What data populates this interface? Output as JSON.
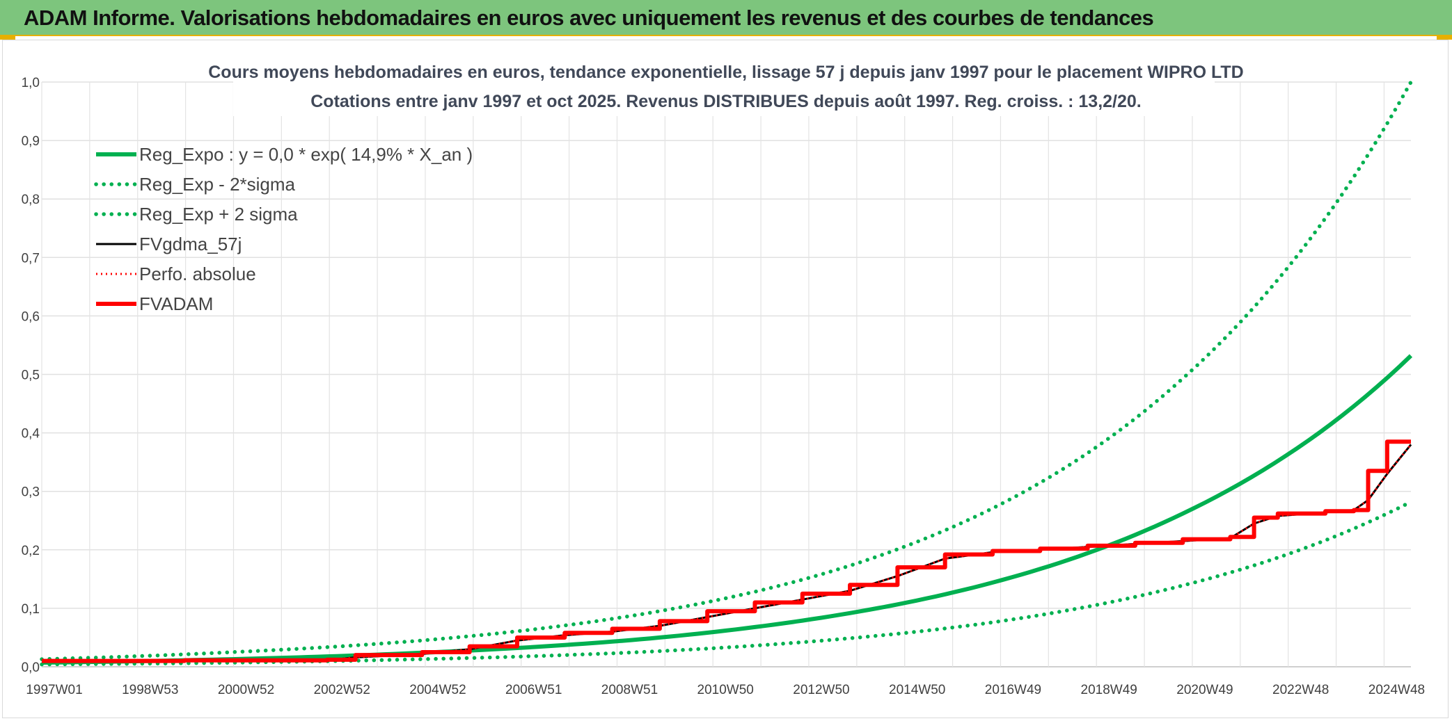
{
  "banner": {
    "title": "ADAM Informe. Valorisations hebdomadaires en euros avec uniquement les revenus et des courbes de tendances"
  },
  "chart_data": {
    "type": "line",
    "title": "Cours moyens hebdomadaires en euros, tendance exponentielle, lissage 57 j depuis janv 1997 pour le placement WIPRO LTD",
    "subtitle": "Cotations entre janv 1997 et oct 2025. Revenus DISTRIBUES depuis août 1997. Reg. croiss. : 13,2/20.",
    "xlabel": "",
    "ylabel": "",
    "x_tick_labels": [
      "1997W01",
      "1998W53",
      "2000W52",
      "2002W52",
      "2004W52",
      "2006W51",
      "2008W51",
      "2010W50",
      "2012W50",
      "2014W50",
      "2016W49",
      "2018W49",
      "2020W49",
      "2022W48",
      "2024W48"
    ],
    "x_range": [
      1997.0,
      2025.8
    ],
    "y_ticks": [
      "0,0",
      "0,1",
      "0,2",
      "0,3",
      "0,4",
      "0,5",
      "0,6",
      "0,7",
      "0,8",
      "0,9",
      "1,0"
    ],
    "ylim": [
      0,
      1.0
    ],
    "grid": true,
    "legend_position": "top-left",
    "series": [
      {
        "name": "Reg_Expo : y = 0,0 * exp( 14,9% *  X_an )",
        "color": "#00b050",
        "style": "solid",
        "x": [
          1997.0,
          2001.0,
          2005.0,
          2009.0,
          2013.0,
          2017.0,
          2021.0,
          2025.8
        ],
        "values": [
          0.007,
          0.013,
          0.024,
          0.043,
          0.079,
          0.144,
          0.262,
          0.532
        ]
      },
      {
        "name": "Reg_Exp - 2*sigma",
        "color": "#00b050",
        "style": "dotted",
        "x": [
          1997.0,
          2001.0,
          2005.0,
          2009.0,
          2013.0,
          2017.0,
          2021.0,
          2025.8
        ],
        "values": [
          0.004,
          0.007,
          0.013,
          0.023,
          0.042,
          0.076,
          0.139,
          0.282
        ]
      },
      {
        "name": "Reg_Exp + 2 sigma",
        "color": "#00b050",
        "style": "dotted",
        "x": [
          1997.0,
          2001.0,
          2005.0,
          2009.0,
          2013.0,
          2017.0,
          2021.0,
          2025.8
        ],
        "values": [
          0.013,
          0.025,
          0.045,
          0.082,
          0.149,
          0.271,
          0.493,
          1.0
        ]
      },
      {
        "name": "FVgdma_57j",
        "color": "#000000",
        "style": "solid",
        "x": [
          1997.0,
          2000.0,
          2003.0,
          2003.6,
          2005.0,
          2006.0,
          2007.0,
          2008.0,
          2009.0,
          2010.0,
          2011.0,
          2012.0,
          2013.0,
          2014.0,
          2015.0,
          2016.0,
          2017.0,
          2018.0,
          2019.0,
          2020.0,
          2021.0,
          2022.0,
          2022.5,
          2023.0,
          2024.0,
          2024.6,
          2024.9,
          2025.3,
          2025.8
        ],
        "values": [
          0.009,
          0.01,
          0.011,
          0.016,
          0.022,
          0.03,
          0.045,
          0.054,
          0.06,
          0.07,
          0.085,
          0.1,
          0.115,
          0.13,
          0.155,
          0.185,
          0.196,
          0.2,
          0.205,
          0.21,
          0.215,
          0.22,
          0.245,
          0.258,
          0.264,
          0.268,
          0.285,
          0.33,
          0.38
        ]
      },
      {
        "name": "Perfo. absolue",
        "color": "#ff0000",
        "style": "dotted",
        "x": [
          1997.0,
          2000.0,
          2003.0,
          2003.6,
          2005.0,
          2006.0,
          2007.0,
          2008.0,
          2009.0,
          2010.0,
          2011.0,
          2012.0,
          2013.0,
          2014.0,
          2015.0,
          2016.0,
          2017.0,
          2018.0,
          2019.0,
          2020.0,
          2021.0,
          2022.0,
          2022.5,
          2023.0,
          2024.0,
          2024.6,
          2024.9,
          2025.3,
          2025.8
        ],
        "values": [
          0.009,
          0.01,
          0.011,
          0.016,
          0.022,
          0.03,
          0.045,
          0.054,
          0.06,
          0.07,
          0.085,
          0.1,
          0.115,
          0.13,
          0.155,
          0.185,
          0.196,
          0.2,
          0.205,
          0.21,
          0.215,
          0.22,
          0.245,
          0.258,
          0.264,
          0.268,
          0.285,
          0.33,
          0.38
        ]
      },
      {
        "name": "FVADAM",
        "color": "#ff0000",
        "style": "solid",
        "x": [
          1997.0,
          2000.0,
          2003.0,
          2003.6,
          2005.0,
          2006.0,
          2007.0,
          2008.0,
          2009.0,
          2010.0,
          2011.0,
          2012.0,
          2013.0,
          2014.0,
          2015.0,
          2016.0,
          2017.0,
          2018.0,
          2019.0,
          2020.0,
          2021.0,
          2022.0,
          2022.5,
          2023.0,
          2024.0,
          2024.6,
          2024.9,
          2025.3,
          2025.8
        ],
        "values": [
          0.01,
          0.011,
          0.012,
          0.02,
          0.025,
          0.035,
          0.05,
          0.058,
          0.065,
          0.078,
          0.095,
          0.11,
          0.125,
          0.14,
          0.17,
          0.192,
          0.198,
          0.202,
          0.207,
          0.212,
          0.218,
          0.222,
          0.255,
          0.262,
          0.266,
          0.268,
          0.335,
          0.385,
          0.385
        ]
      }
    ]
  }
}
